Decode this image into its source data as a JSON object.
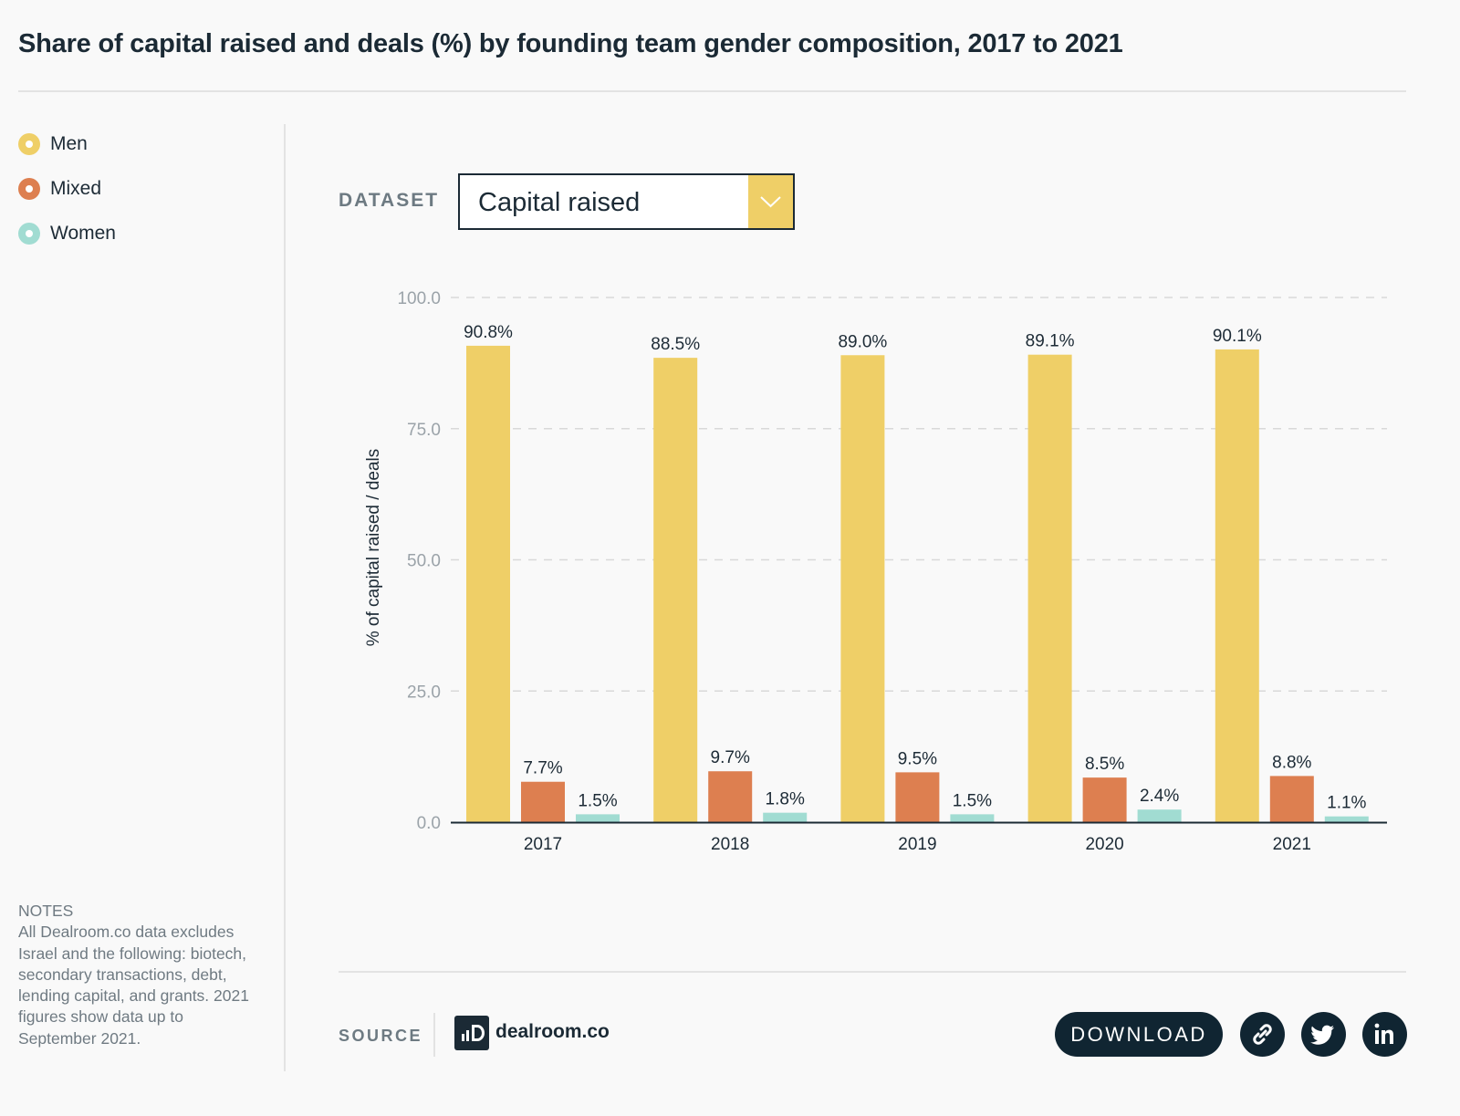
{
  "title": "Share of capital raised and deals (%) by founding team gender composition, 2017 to 2021",
  "legend": [
    {
      "label": "Men",
      "color": "#efcf67"
    },
    {
      "label": "Mixed",
      "color": "#dd7f50"
    },
    {
      "label": "Women",
      "color": "#a1dcd2"
    }
  ],
  "notes": {
    "heading": "NOTES",
    "text": "All Dealroom.co data excludes Israel and the following: biotech, secondary transactions, debt, lending capital, and grants. 2021 figures show data up to September 2021."
  },
  "dataset": {
    "label": "DATASET",
    "selected": "Capital raised",
    "arrow_icon": "chevron-down-icon"
  },
  "chart_data": {
    "type": "bar",
    "categories": [
      "2017",
      "2018",
      "2019",
      "2020",
      "2021"
    ],
    "series": [
      {
        "name": "Men",
        "color": "#efcf67",
        "values": [
          90.8,
          88.5,
          89.0,
          89.1,
          90.1
        ],
        "labels": [
          "90.8%",
          "88.5%",
          "89.0%",
          "89.1%",
          "90.1%"
        ]
      },
      {
        "name": "Mixed",
        "color": "#dd7f50",
        "values": [
          7.7,
          9.7,
          9.5,
          8.5,
          8.8
        ],
        "labels": [
          "7.7%",
          "9.7%",
          "9.5%",
          "8.5%",
          "8.8%"
        ]
      },
      {
        "name": "Women",
        "color": "#a1dcd2",
        "values": [
          1.5,
          1.8,
          1.5,
          2.4,
          1.1
        ],
        "labels": [
          "1.5%",
          "1.8%",
          "1.5%",
          "2.4%",
          "1.1%"
        ]
      }
    ],
    "ylabel": "% of capital raised / deals",
    "xlabel": "",
    "ylim": [
      0,
      100
    ],
    "yticks": [
      "0.0",
      "25.0",
      "50.0",
      "75.0",
      "100.0"
    ],
    "grid": true,
    "legend_position": "left"
  },
  "footer": {
    "source_label": "SOURCE",
    "brand_name": "dealroom.co",
    "download_label": "DOWNLOAD",
    "share_icons": [
      "link-icon",
      "twitter-icon",
      "linkedin-icon"
    ]
  }
}
